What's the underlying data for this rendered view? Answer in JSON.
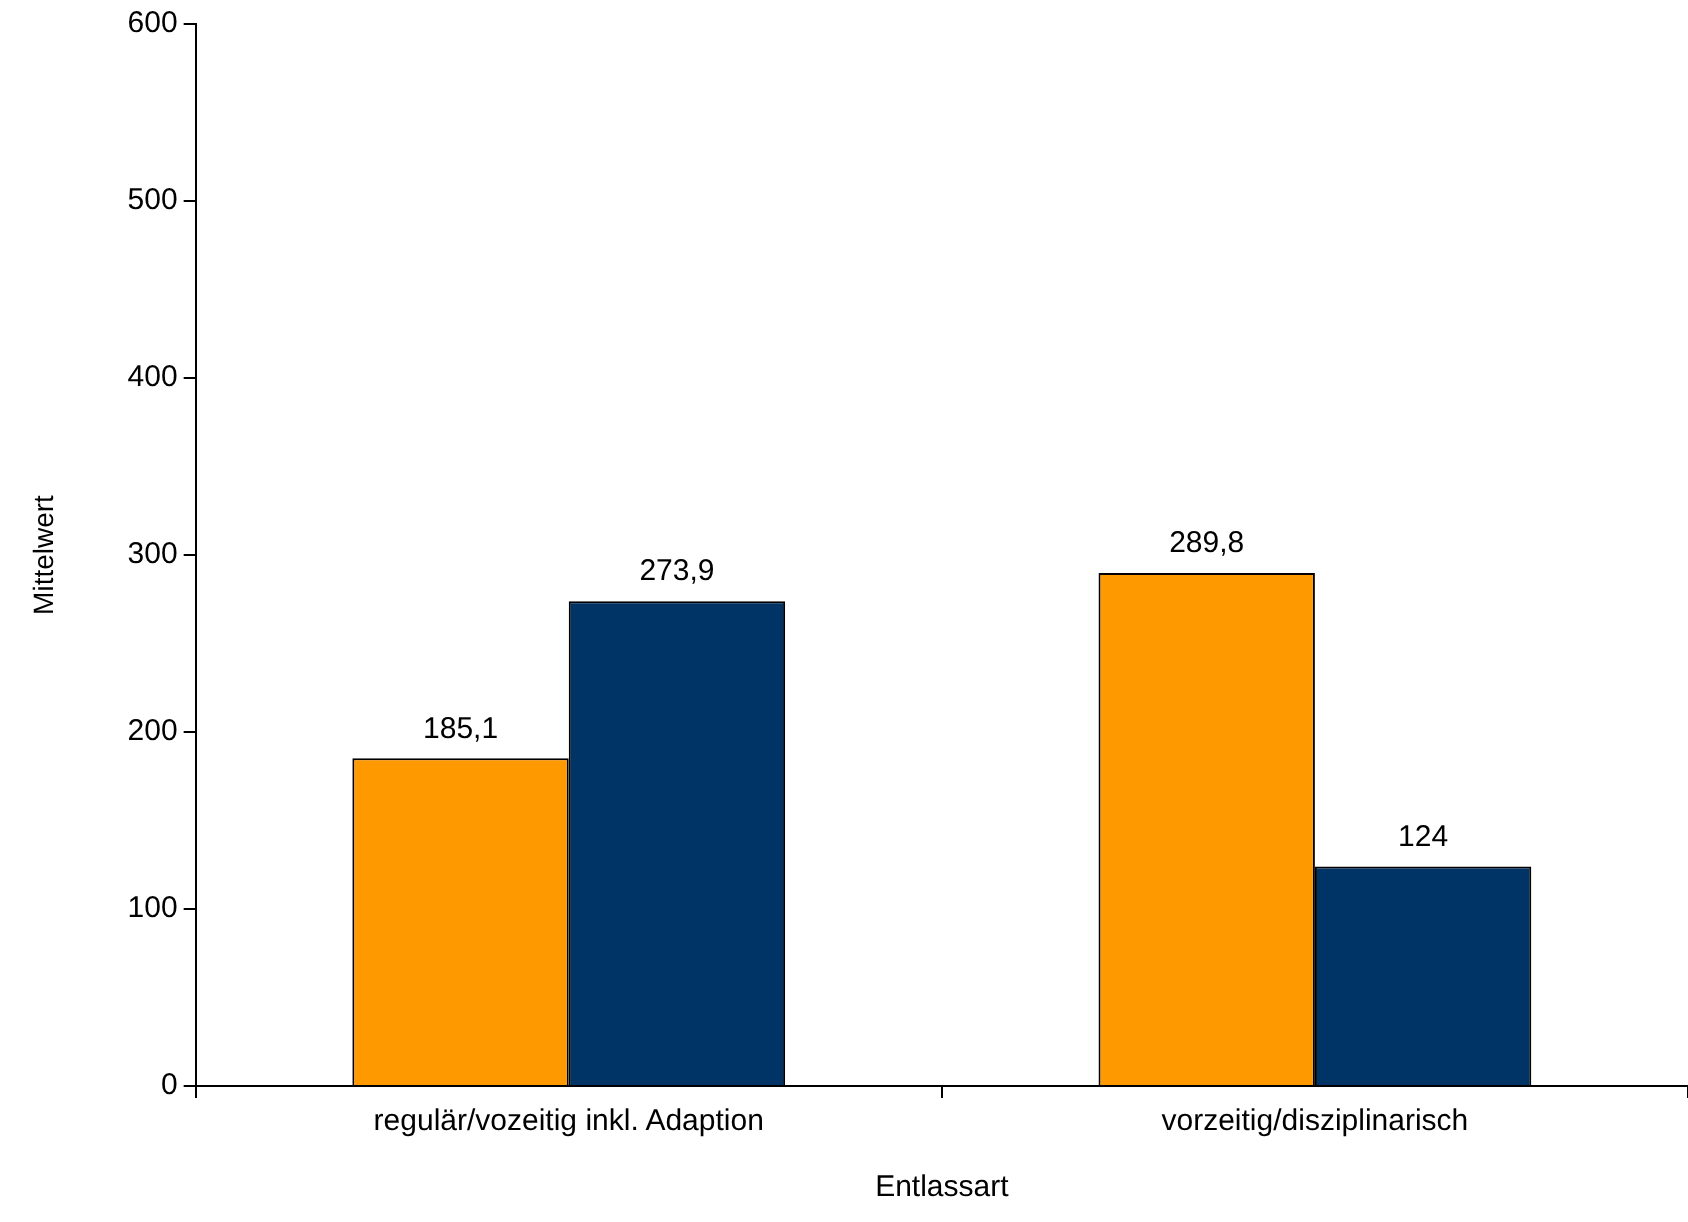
{
  "chart_data": {
    "type": "bar",
    "xlabel": "Entlassart",
    "ylabel": "Mittelwert",
    "categories": [
      "regulär/vozeitig inkl. Adaption",
      "vorzeitig/disziplinarisch"
    ],
    "series": [
      {
        "color": "#ff9900",
        "values": [
          185.1,
          289.8
        ],
        "value_labels": [
          "185,1",
          "289,8"
        ]
      },
      {
        "color": "#003366",
        "values": [
          273.9,
          124
        ],
        "value_labels": [
          "273,9",
          "124"
        ]
      }
    ],
    "ylim": [
      0,
      600
    ],
    "yticks": [
      0,
      100,
      200,
      300,
      400,
      500,
      600
    ],
    "grid": false,
    "legend": false
  }
}
